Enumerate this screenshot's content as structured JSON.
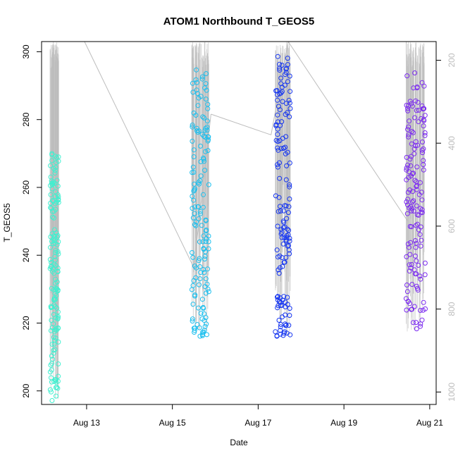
{
  "chart_data": {
    "type": "scatter",
    "title": "ATOM1 Northbound T_GEOS5",
    "xlabel": "Date",
    "ylabel": "T_GEOS5",
    "x_ticks": [
      "Aug 13",
      "Aug 15",
      "Aug 17",
      "Aug 19",
      "Aug 21"
    ],
    "x_tick_days": [
      13,
      15,
      17,
      19,
      21
    ],
    "xlim_days": [
      11.95,
      21.15
    ],
    "ylim": [
      196,
      303
    ],
    "y_ticks": [
      200,
      220,
      240,
      260,
      280,
      300
    ],
    "right_axis": {
      "label_color": "#bdbdbd",
      "ticks": [
        200,
        400,
        600,
        800,
        1000
      ],
      "range": [
        1030,
        155
      ]
    },
    "grid": false,
    "point_series": [
      {
        "day_range": [
          12.15,
          12.35
        ],
        "color": "#3ff0d0",
        "y_range": [
          197,
          272
        ]
      },
      {
        "day_range": [
          15.45,
          15.85
        ],
        "color": "#1cbfee",
        "y_range": [
          216,
          295
        ]
      },
      {
        "day_range": [
          17.4,
          17.75
        ],
        "color": "#1535f0",
        "y_range": [
          216,
          299
        ]
      },
      {
        "day_range": [
          20.45,
          20.9
        ],
        "color": "#7b2af0",
        "y_range": [
          217,
          294
        ]
      }
    ],
    "pressure_track": {
      "color": "#bdbdbd",
      "points": [
        {
          "day": 12.95,
          "pressure": 140
        },
        {
          "day": 15.5,
          "pressure": 700
        },
        {
          "day": 15.9,
          "pressure": 330
        },
        {
          "day": 17.3,
          "pressure": 380
        },
        {
          "day": 17.7,
          "pressure": 140
        },
        {
          "day": 20.5,
          "pressure": 590
        }
      ]
    }
  }
}
